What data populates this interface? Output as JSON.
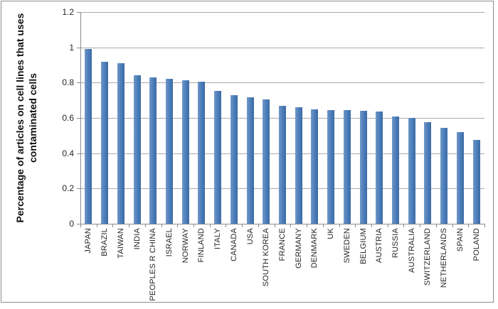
{
  "chart_data": {
    "type": "bar",
    "title": "",
    "ylabel": "Percentage of articles on cell lines that uses contaminated cells",
    "ylabel_lines": [
      "Percentage of articles on cell lines that uses",
      "contaminated cells"
    ],
    "xlabel": "",
    "categories": [
      "JAPAN",
      "BRAZIL",
      "TAIWAN",
      "INDIA",
      "PEOPLES R CHINA",
      "ISRAEL",
      "NORWAY",
      "FINLAND",
      "ITALY",
      "CANADA",
      "USA",
      "SOUTH KOREA",
      "FRANCE",
      "GERMANY",
      "DENMARK",
      "UK",
      "SWEDEN",
      "BELGIUM",
      "AUSTRIA",
      "RUSSIA",
      "AUSTRALIA",
      "SWITZERLAND",
      "NETHERLANDS",
      "SPAIN",
      "POLAND"
    ],
    "values": [
      0.99,
      0.92,
      0.91,
      0.84,
      0.83,
      0.82,
      0.815,
      0.805,
      0.755,
      0.73,
      0.715,
      0.705,
      0.67,
      0.66,
      0.65,
      0.645,
      0.645,
      0.64,
      0.635,
      0.61,
      0.6,
      0.575,
      0.545,
      0.52,
      0.475
    ],
    "ylim": [
      0,
      1.2
    ],
    "ytick_values": [
      0,
      0.2,
      0.4,
      0.6,
      0.8,
      1,
      1.2
    ],
    "ytick_labels": [
      "0",
      "0.2",
      "0.4",
      "0.6",
      "0.8",
      "1",
      "1.2"
    ],
    "grid": true,
    "legend_position": "none",
    "bar_color": "#4f81bd",
    "gridline_color": "#ababab",
    "axis_color": "#8c8c8c"
  }
}
